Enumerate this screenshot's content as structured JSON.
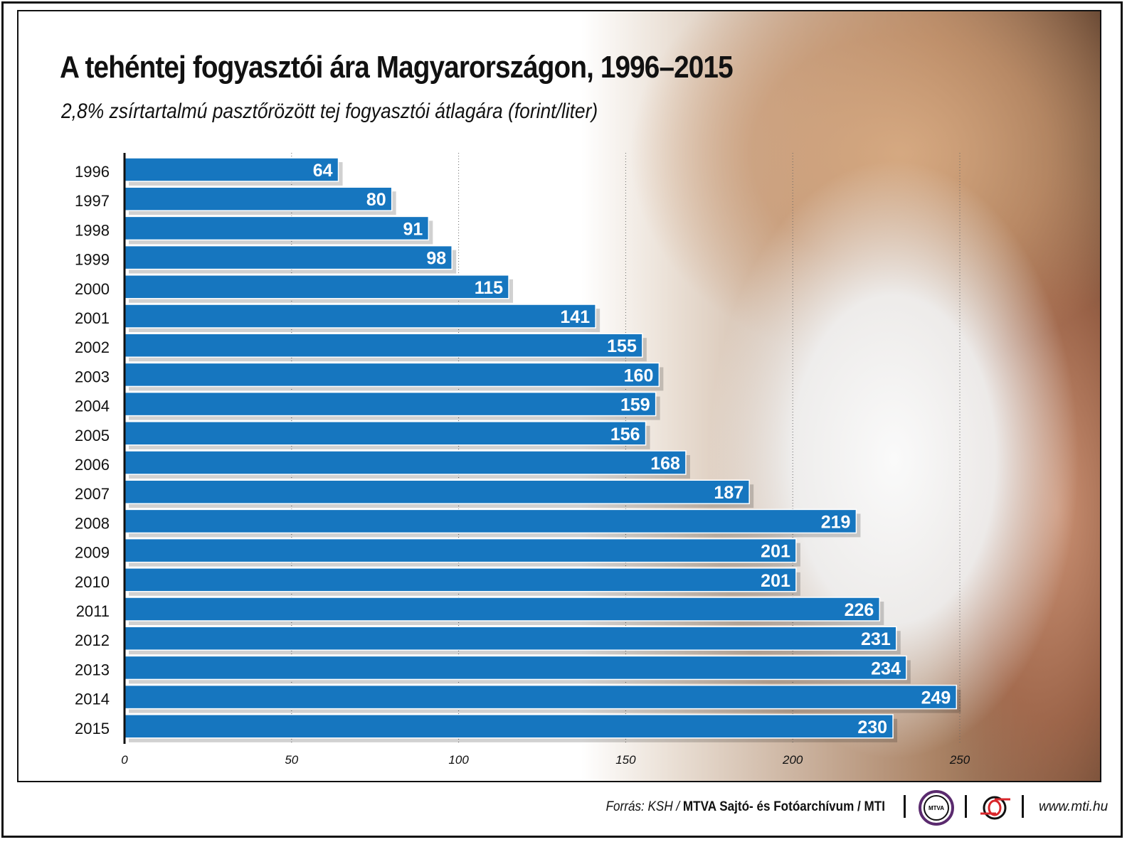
{
  "chart_data": {
    "type": "bar",
    "orientation": "horizontal",
    "title": "A tehéntej fogyasztói ára Magyarországon, 1996–2015",
    "subtitle": "2,8% zsírtartalmú pasztőrözött tej fogyasztói átlagára (forint/liter)",
    "categories": [
      "1996",
      "1997",
      "1998",
      "1999",
      "2000",
      "2001",
      "2002",
      "2003",
      "2004",
      "2005",
      "2006",
      "2007",
      "2008",
      "2009",
      "2010",
      "2011",
      "2012",
      "2013",
      "2014",
      "2015"
    ],
    "values": [
      64,
      80,
      91,
      98,
      115,
      141,
      155,
      160,
      159,
      156,
      168,
      187,
      219,
      201,
      201,
      226,
      231,
      234,
      249,
      230
    ],
    "xlim": [
      0,
      250
    ],
    "xticks": [
      "0",
      "50",
      "100",
      "150",
      "200",
      "250"
    ],
    "grid": "vertical dotted",
    "bar_color": "#1676bf",
    "label_color": "#ffffff"
  },
  "footer": {
    "source_prefix": "Forrás: KSH /",
    "source_main": "MTVA Sajtó- és Fotóarchívum / MTI",
    "logo_mtva": "MTVA",
    "website": "www.mti.hu"
  }
}
